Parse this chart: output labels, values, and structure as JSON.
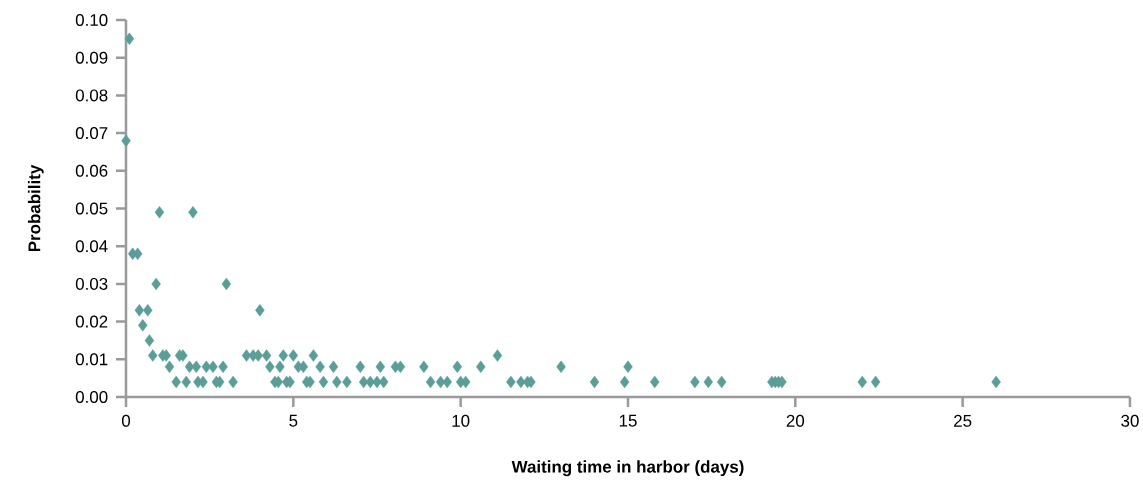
{
  "chart_data": {
    "type": "scatter",
    "xlabel": "Waiting time in harbor (days)",
    "ylabel": "Probability",
    "xlim": [
      0,
      30
    ],
    "xticks": [
      0,
      5,
      10,
      15,
      20,
      25,
      30
    ],
    "ylim": [
      0,
      0.1
    ],
    "yticks": [
      {
        "value": 0,
        "label": "0.00"
      },
      {
        "value": 0.01,
        "label": "0.01"
      },
      {
        "value": 0.02,
        "label": "0.02"
      },
      {
        "value": 0.03,
        "label": "0.03"
      },
      {
        "value": 0.04,
        "label": "0.04"
      },
      {
        "value": 0.05,
        "label": "0.05"
      },
      {
        "value": 0.06,
        "label": "0.06"
      },
      {
        "value": 0.07,
        "label": "0.07"
      },
      {
        "value": 0.08,
        "label": "0.08"
      },
      {
        "value": 0.09,
        "label": "0.09"
      },
      {
        "value": 0.1,
        "label": "0.10"
      }
    ],
    "marker": "diamond",
    "series": [
      {
        "color": "#5b9e98",
        "x": [
          0.1,
          0,
          1.0,
          2.0,
          0.2,
          0.35,
          0.9,
          3.0,
          0.4,
          0.65,
          4.0,
          0.5,
          0.7,
          0.8,
          1.1,
          1.2,
          1.6,
          1.7,
          3.6,
          3.8,
          3.95,
          4.2,
          4.7,
          5.0,
          5.6,
          11.1,
          1.3,
          1.9,
          2.1,
          2.4,
          2.6,
          2.9,
          4.3,
          4.6,
          5.15,
          5.3,
          5.8,
          6.2,
          7.0,
          7.6,
          8.05,
          8.2,
          8.9,
          9.9,
          10.6,
          13.0,
          15.0,
          1.5,
          1.8,
          2.15,
          2.3,
          2.7,
          2.8,
          3.2,
          4.45,
          4.55,
          4.8,
          4.9,
          5.4,
          5.5,
          5.9,
          6.3,
          6.6,
          7.1,
          7.3,
          7.5,
          7.7,
          9.1,
          9.4,
          9.6,
          10.0,
          10.15,
          11.5,
          11.8,
          12.0,
          12.1,
          14.0,
          14.9,
          15.8,
          17.0,
          17.4,
          17.8,
          19.3,
          19.4,
          19.5,
          19.6,
          22.0,
          22.4,
          26.0
        ],
        "values": [
          0.095,
          0.068,
          0.049,
          0.049,
          0.038,
          0.038,
          0.03,
          0.03,
          0.023,
          0.023,
          0.023,
          0.019,
          0.015,
          0.011,
          0.011,
          0.011,
          0.011,
          0.011,
          0.011,
          0.011,
          0.011,
          0.011,
          0.011,
          0.011,
          0.011,
          0.011,
          0.008,
          0.008,
          0.008,
          0.008,
          0.008,
          0.008,
          0.008,
          0.008,
          0.008,
          0.008,
          0.008,
          0.008,
          0.008,
          0.008,
          0.008,
          0.008,
          0.008,
          0.008,
          0.008,
          0.008,
          0.008,
          0.004,
          0.004,
          0.004,
          0.004,
          0.004,
          0.004,
          0.004,
          0.004,
          0.004,
          0.004,
          0.004,
          0.004,
          0.004,
          0.004,
          0.004,
          0.004,
          0.004,
          0.004,
          0.004,
          0.004,
          0.004,
          0.004,
          0.004,
          0.004,
          0.004,
          0.004,
          0.004,
          0.004,
          0.004,
          0.004,
          0.004,
          0.004,
          0.004,
          0.004,
          0.004,
          0.004,
          0.004,
          0.004,
          0.004,
          0.004,
          0.004,
          0.004
        ]
      }
    ]
  }
}
